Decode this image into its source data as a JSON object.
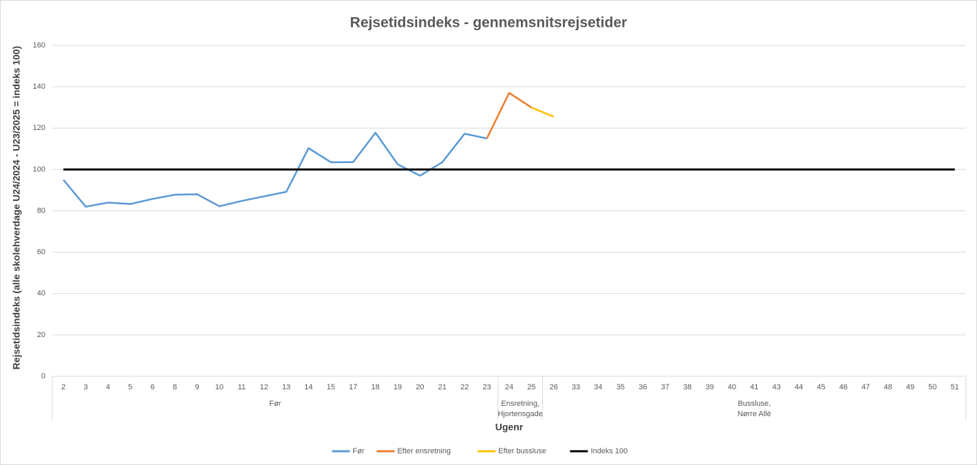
{
  "chart_data": {
    "type": "line",
    "title": "Rejsetidsindeks - gennemsnitsrejsetider",
    "x_label": "Ugenr",
    "y_label": "Rejsetidsindeks (alle skolehverdage U24/2024 - U23/2025 = indeks 100)",
    "groups": [
      {
        "label": [
          "Før"
        ],
        "categories": [
          "2",
          "3",
          "4",
          "5",
          "6",
          "8",
          "9",
          "10",
          "11",
          "12",
          "13",
          "14",
          "15",
          "17",
          "18",
          "19",
          "20",
          "21",
          "22",
          "23"
        ]
      },
      {
        "label": [
          "Ensretning,",
          "Hjortensgade"
        ],
        "categories": [
          "24",
          "25"
        ]
      },
      {
        "label": [
          "Bussluse,",
          "Nørre Allé"
        ],
        "categories": [
          "26",
          "33",
          "34",
          "35",
          "36",
          "37",
          "38",
          "39",
          "40",
          "41",
          "43",
          "44",
          "45",
          "46",
          "47",
          "48",
          "49",
          "50",
          "51"
        ]
      }
    ],
    "series": [
      {
        "name": "Før",
        "color": "#5b9bd5",
        "values": [
          95,
          82,
          84,
          83.3,
          85.8,
          87.8,
          88,
          82.2,
          84.8,
          87,
          89.2,
          110.3,
          103.5,
          103.6,
          117.8,
          102.5,
          97,
          103.5,
          117.3,
          115,
          null,
          null,
          null,
          null,
          null,
          null,
          null,
          null,
          null,
          null,
          null,
          null,
          null,
          null,
          null,
          null,
          null,
          null,
          null,
          null,
          null
        ]
      },
      {
        "name": "Efter ensretning",
        "color": "#ed7d31",
        "values": [
          null,
          null,
          null,
          null,
          null,
          null,
          null,
          null,
          null,
          null,
          null,
          null,
          null,
          null,
          null,
          null,
          null,
          null,
          null,
          115,
          137,
          130,
          null,
          null,
          null,
          null,
          null,
          null,
          null,
          null,
          null,
          null,
          null,
          null,
          null,
          null,
          null,
          null,
          null,
          null,
          null
        ]
      },
      {
        "name": "Efter bussluse",
        "color": "#ffc000",
        "values": [
          null,
          null,
          null,
          null,
          null,
          null,
          null,
          null,
          null,
          null,
          null,
          null,
          null,
          null,
          null,
          null,
          null,
          null,
          null,
          null,
          null,
          130,
          125.5,
          null,
          null,
          null,
          null,
          null,
          null,
          null,
          null,
          null,
          null,
          null,
          null,
          null,
          null,
          null,
          null,
          null,
          null
        ]
      },
      {
        "name": "Indeks 100",
        "color": "#000000",
        "values": [
          100,
          100,
          100,
          100,
          100,
          100,
          100,
          100,
          100,
          100,
          100,
          100,
          100,
          100,
          100,
          100,
          100,
          100,
          100,
          100,
          100,
          100,
          100,
          100,
          100,
          100,
          100,
          100,
          100,
          100,
          100,
          100,
          100,
          100,
          100,
          100,
          100,
          100,
          100,
          100,
          100
        ]
      }
    ],
    "ylim": [
      0,
      160
    ],
    "yticks": [
      0,
      20,
      40,
      60,
      80,
      100,
      120,
      140,
      160
    ],
    "grid": true,
    "legend": "bottom"
  }
}
